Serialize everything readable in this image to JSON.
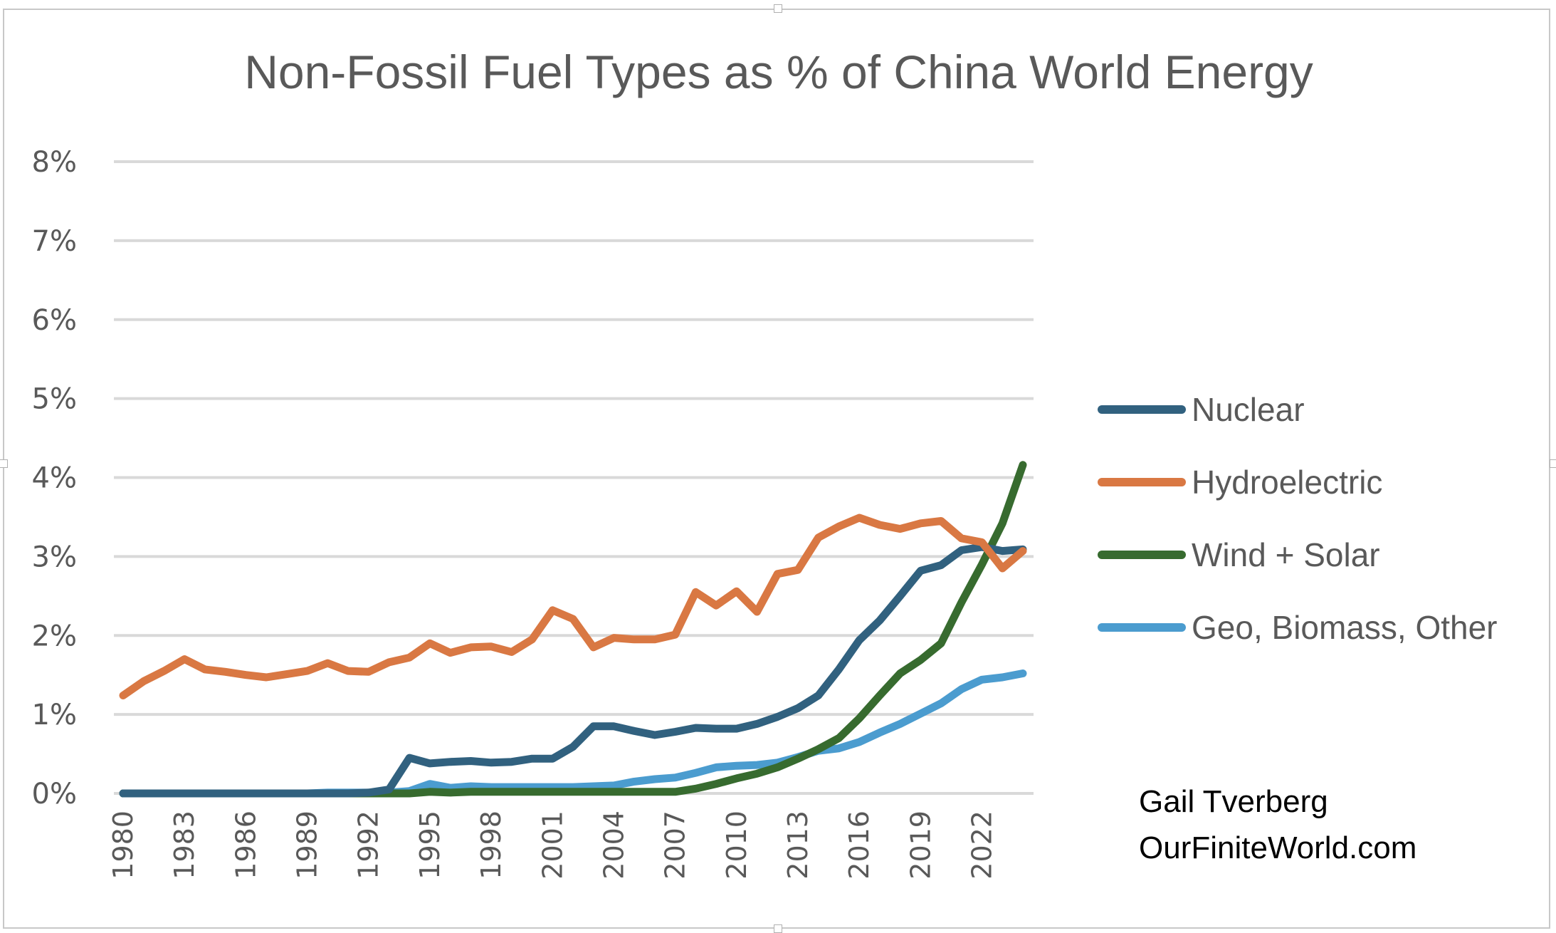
{
  "chart_data": {
    "type": "line",
    "title": "Non-Fossil Fuel Types as % of China World Energy",
    "xlabel": "",
    "ylabel": "",
    "ylim": [
      0,
      8
    ],
    "yticks": [
      "0%",
      "1%",
      "2%",
      "3%",
      "4%",
      "5%",
      "6%",
      "7%",
      "8%"
    ],
    "ytick_values": [
      0,
      1,
      2,
      3,
      4,
      5,
      6,
      7,
      8
    ],
    "xticks": [
      "1980",
      "1983",
      "1986",
      "1989",
      "1992",
      "1995",
      "1998",
      "2001",
      "2004",
      "2007",
      "2010",
      "2013",
      "2016",
      "2019",
      "2022"
    ],
    "grid": true,
    "legend_position": "right",
    "x": [
      1980,
      1981,
      1982,
      1983,
      1984,
      1985,
      1986,
      1987,
      1988,
      1989,
      1990,
      1991,
      1992,
      1993,
      1994,
      1995,
      1996,
      1997,
      1998,
      1999,
      2000,
      2001,
      2002,
      2003,
      2004,
      2005,
      2006,
      2007,
      2008,
      2009,
      2010,
      2011,
      2012,
      2013,
      2014,
      2015,
      2016,
      2017,
      2018,
      2019,
      2020,
      2021,
      2022,
      2023,
      2024
    ],
    "series": [
      {
        "name": "Nuclear",
        "color": "#31617f",
        "values": [
          0,
          0,
          0,
          0,
          0,
          0,
          0,
          0,
          0,
          0,
          0,
          0,
          0.01,
          0.05,
          0.45,
          0.38,
          0.4,
          0.41,
          0.39,
          0.4,
          0.44,
          0.44,
          0.59,
          0.85,
          0.85,
          0.79,
          0.74,
          0.78,
          0.83,
          0.82,
          0.82,
          0.88,
          0.97,
          1.08,
          1.24,
          1.57,
          1.94,
          2.19,
          2.5,
          2.82,
          2.89,
          3.08,
          3.12,
          3.07,
          3.09
        ]
      },
      {
        "name": "Hydroelectric",
        "color": "#d97843",
        "values": [
          1.24,
          1.42,
          1.55,
          1.7,
          1.57,
          1.54,
          1.5,
          1.47,
          1.51,
          1.55,
          1.65,
          1.55,
          1.54,
          1.66,
          1.72,
          1.9,
          1.78,
          1.85,
          1.86,
          1.79,
          1.95,
          2.32,
          2.21,
          1.85,
          1.97,
          1.95,
          1.95,
          2.01,
          2.55,
          2.38,
          2.56,
          2.3,
          2.78,
          2.83,
          3.24,
          3.38,
          3.49,
          3.4,
          3.35,
          3.42,
          3.45,
          3.23,
          3.18,
          2.85,
          3.07
        ]
      },
      {
        "name": "Wind + Solar",
        "color": "#376b2f",
        "values": [
          0,
          0,
          0,
          0,
          0,
          0,
          0,
          0,
          0,
          0,
          0,
          0,
          0,
          0,
          0,
          0.02,
          0.01,
          0.02,
          0.02,
          0.02,
          0.02,
          0.02,
          0.02,
          0.02,
          0.02,
          0.02,
          0.02,
          0.02,
          0.06,
          0.12,
          0.19,
          0.25,
          0.33,
          0.44,
          0.56,
          0.7,
          0.95,
          1.24,
          1.52,
          1.69,
          1.9,
          2.42,
          2.9,
          3.42,
          4.16
        ]
      },
      {
        "name": "Geo, Biomass, Other",
        "color": "#4b9ccf",
        "values": [
          0,
          0,
          0,
          0,
          0,
          0,
          0,
          0,
          0,
          0,
          0.01,
          0.01,
          0.01,
          0.01,
          0.03,
          0.12,
          0.07,
          0.09,
          0.08,
          0.08,
          0.08,
          0.08,
          0.08,
          0.09,
          0.1,
          0.15,
          0.18,
          0.2,
          0.26,
          0.33,
          0.35,
          0.36,
          0.39,
          0.46,
          0.54,
          0.57,
          0.65,
          0.77,
          0.88,
          1.01,
          1.14,
          1.32,
          1.44,
          1.47,
          1.52
        ]
      }
    ],
    "annotations": [
      "Gail Tverberg",
      "OurFiniteWorld.com"
    ]
  },
  "credit": {
    "author": "Gail Tverberg",
    "site": "OurFiniteWorld.com"
  }
}
